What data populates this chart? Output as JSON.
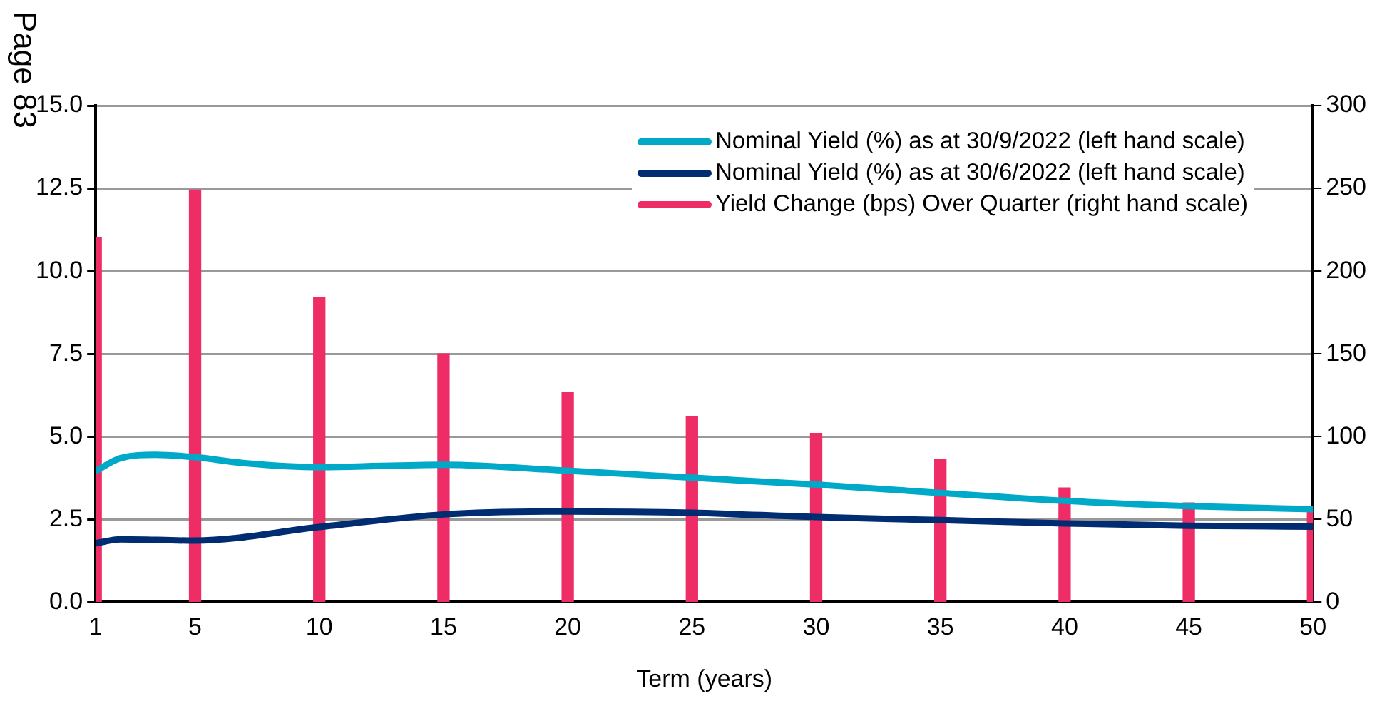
{
  "chart_data": {
    "type": "line",
    "xlabel": "Term (years)",
    "annotations": [
      "Page 83"
    ],
    "xlim": [
      1,
      50
    ],
    "xticks": [
      1,
      5,
      10,
      15,
      20,
      25,
      30,
      35,
      40,
      45,
      50
    ],
    "ylim": [
      0,
      15
    ],
    "yticks": [
      {
        "value": 0,
        "label": "0.0"
      },
      {
        "value": 2.5,
        "label": "2.5"
      },
      {
        "value": 5,
        "label": "5.0"
      },
      {
        "value": 7.5,
        "label": "7.5"
      },
      {
        "value": 10,
        "label": "10.0"
      },
      {
        "value": 12.5,
        "label": "12.5"
      },
      {
        "value": 15,
        "label": "15.0"
      }
    ],
    "y2lim": [
      0,
      300
    ],
    "y2ticks": [
      0,
      50,
      100,
      150,
      200,
      250,
      300
    ],
    "grid": "y",
    "legend": "top right",
    "marker": "none",
    "line_style": "solid",
    "series": [
      {
        "name": "Nominal Yield (%) as at 30/9/2022 (left hand scale)",
        "axis": "y",
        "color": "#00a9c8",
        "x": [
          1,
          2,
          3.4,
          5,
          7,
          10,
          15,
          20,
          25,
          30,
          35,
          40,
          45,
          50
        ],
        "values": [
          3.96,
          4.35,
          4.45,
          4.38,
          4.2,
          4.08,
          4.15,
          3.97,
          3.76,
          3.55,
          3.3,
          3.06,
          2.9,
          2.81
        ]
      },
      {
        "name": "Nominal Yield (%) as at 30/6/2022 (left hand scale)",
        "axis": "y",
        "color": "#002d72",
        "x": [
          1,
          2,
          5,
          10,
          15,
          20,
          25,
          30,
          35,
          40,
          45,
          50
        ],
        "values": [
          1.78,
          1.9,
          1.86,
          2.27,
          2.65,
          2.74,
          2.7,
          2.57,
          2.48,
          2.38,
          2.31,
          2.28
        ]
      },
      {
        "name": "Yield Change (bps) Over Quarter (right hand scale)",
        "type": "bar",
        "axis": "y2",
        "color": "#ee2d67",
        "x": [
          1,
          5,
          10,
          15,
          20,
          25,
          30,
          35,
          40,
          45,
          50
        ],
        "values": [
          220,
          249,
          184,
          150,
          127,
          112,
          102,
          86,
          69,
          60,
          56
        ]
      }
    ]
  }
}
